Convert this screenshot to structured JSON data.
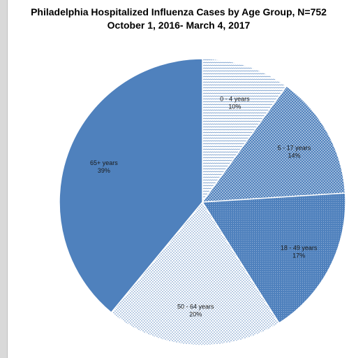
{
  "chart_data": {
    "type": "pie",
    "title": "Philadelphia Hospitalized Influenza Cases by Age Group, N=752",
    "subtitle": "October 1, 2016- March 4, 2017",
    "categories": [
      "0 - 4 years",
      "5 - 17 years",
      "18 - 49 years",
      "50 - 64 years",
      "65+ years"
    ],
    "values": [
      10,
      14,
      17,
      20,
      39
    ],
    "value_labels": [
      "10%",
      "14%",
      "17%",
      "20%",
      "39%"
    ],
    "start_angle": "top (12 o'clock), clockwise",
    "colors": [
      "#ffffff",
      "#8ea9db",
      "#4f7fbf",
      "#dce6f2",
      "#4f81bd"
    ]
  }
}
